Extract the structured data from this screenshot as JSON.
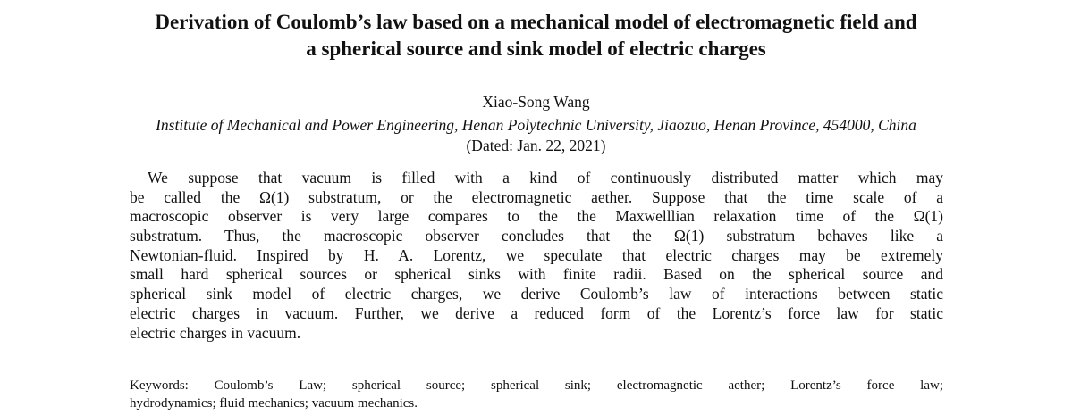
{
  "title": [
    "Derivation of Coulomb’s law based on a mechanical model of electromagnetic field and",
    "a spherical source and sink model of electric charges"
  ],
  "author": "Xiao-Song  Wang",
  "affiliation": "Institute of Mechanical and Power Engineering, Henan Polytechnic University, Jiaozuo, Henan Province, 454000, China",
  "dated": "(Dated: Jan. 22, 2021)",
  "abstract_lines": [
    "We suppose that vacuum is filled with a kind of continuously distributed matter which may",
    "be called the Ω(1) substratum, or the electromagnetic aether.  Suppose that the time scale of a",
    "macroscopic observer is very large compares to the the Maxwelllian relaxation time of the Ω(1)",
    "substratum.  Thus, the macroscopic observer concludes that the Ω(1) substratum behaves like a",
    "Newtonian-fluid.  Inspired by H. A. Lorentz, we speculate that electric charges may be extremely",
    "small hard spherical sources or spherical sinks with finite radii. Based on the spherical source and",
    "spherical sink model of electric charges, we derive Coulomb’s law of interactions between static",
    "electric charges in vacuum.  Further, we derive a reduced form of the Lorentz’s force law for static",
    "electric charges in vacuum."
  ],
  "keywords_lines": [
    "Keywords: Coulomb’s Law; spherical source; spherical sink; electromagnetic aether; Lorentz’s force law;",
    "hydrodynamics; fluid mechanics; vacuum mechanics."
  ]
}
